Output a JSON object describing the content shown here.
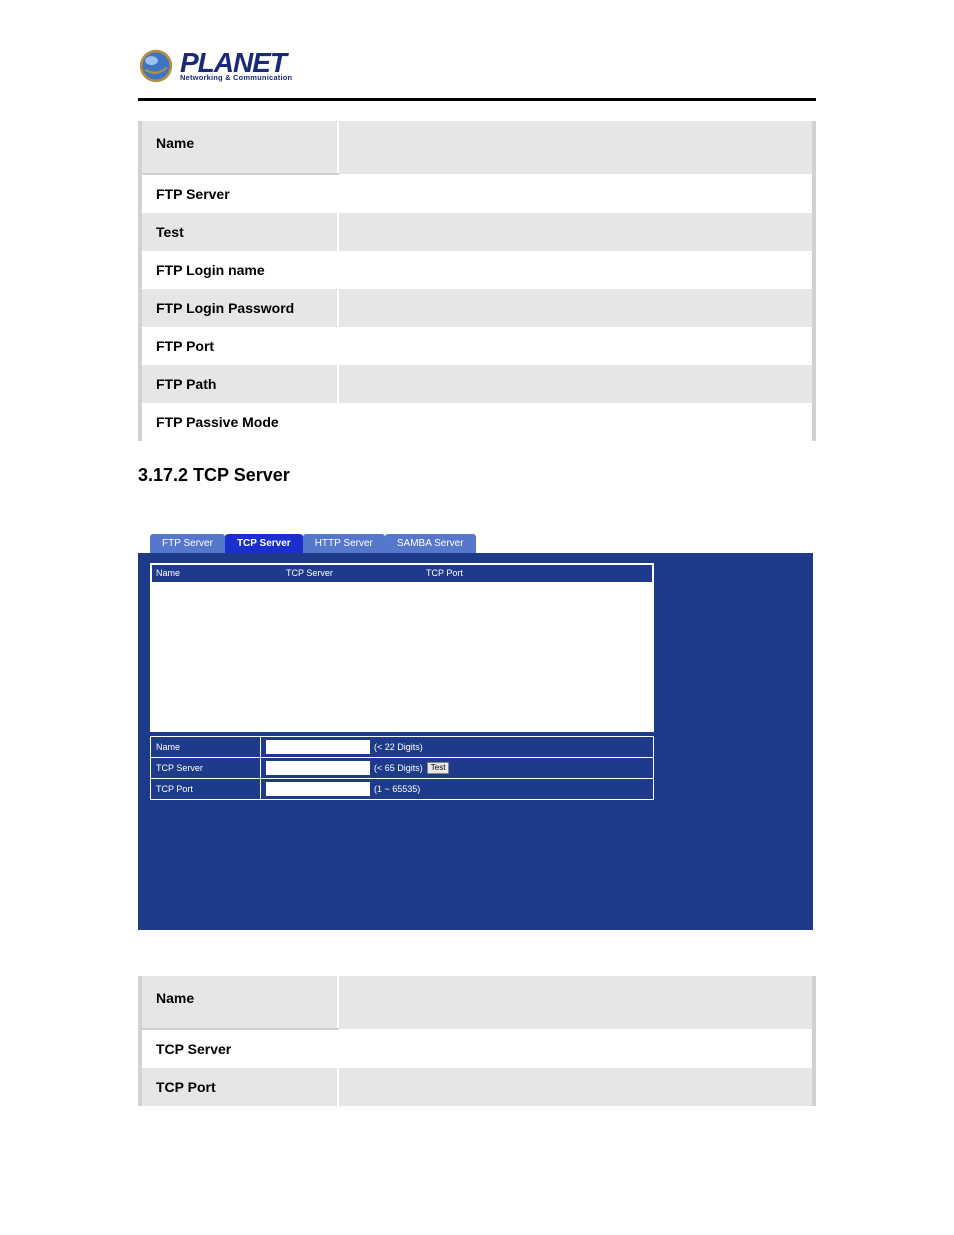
{
  "logo": {
    "word": "PLANET",
    "tagline": "Networking & Communication",
    "globe_colors": {
      "outer": "#b09040",
      "inner": "#3f73c4",
      "shine": "#c8e0ff"
    }
  },
  "ftp_table": {
    "rows": [
      {
        "label": "Name",
        "header": true
      },
      {
        "label": "FTP Server"
      },
      {
        "label": "Test"
      },
      {
        "label": "FTP Login name"
      },
      {
        "label": "FTP Login Password"
      },
      {
        "label": "FTP Port"
      },
      {
        "label": "FTP Path"
      },
      {
        "label": "FTP Passive Mode"
      }
    ]
  },
  "section_heading": "3.17.2 TCP Server",
  "screenshot": {
    "panel_bg": "#1e3a8a",
    "tabs": [
      {
        "label": "FTP Server",
        "active": false
      },
      {
        "label": "TCP Server",
        "active": true
      },
      {
        "label": "HTTP Server",
        "active": false
      },
      {
        "label": "SAMBA Server",
        "active": false
      }
    ],
    "list_columns": [
      "Name",
      "TCP Server",
      "TCP Port"
    ],
    "form": {
      "rows": [
        {
          "label": "Name",
          "hint": "(< 22 Digits)",
          "has_test": false
        },
        {
          "label": "TCP Server",
          "hint": "(< 65 Digits)",
          "has_test": true,
          "test_label": "Test"
        },
        {
          "label": "TCP Port",
          "hint": "(1 ~ 65535)",
          "has_test": false
        }
      ]
    }
  },
  "tcp_table": {
    "rows": [
      {
        "label": "Name",
        "header": true
      },
      {
        "label": "TCP Server"
      },
      {
        "label": "TCP Port"
      }
    ]
  }
}
